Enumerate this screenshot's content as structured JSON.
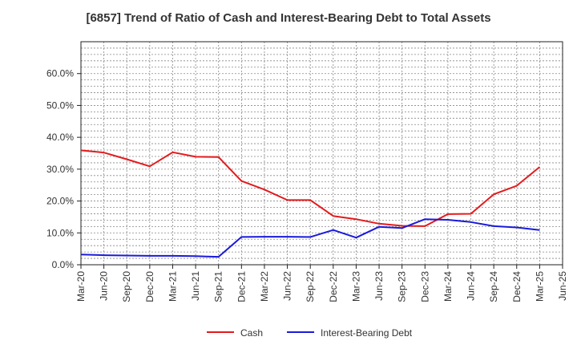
{
  "chart_data": {
    "type": "line",
    "title": "[6857]  Trend of Ratio of Cash and Interest-Bearing Debt to Total Assets",
    "xlabel": "",
    "ylabel": "",
    "x": [
      "Mar-20",
      "Jun-20",
      "Sep-20",
      "Dec-20",
      "Mar-21",
      "Jun-21",
      "Sep-21",
      "Dec-21",
      "Mar-22",
      "Jun-22",
      "Sep-22",
      "Dec-22",
      "Mar-23",
      "Jun-23",
      "Sep-23",
      "Dec-23",
      "Mar-24",
      "Jun-24",
      "Sep-24",
      "Dec-24",
      "Mar-25",
      "Jun-25"
    ],
    "ylim": [
      0,
      0.7
    ],
    "yticks": [
      0,
      0.1,
      0.2,
      0.3,
      0.4,
      0.5,
      0.6
    ],
    "ytick_labels": [
      "0.0%",
      "10.0%",
      "20.0%",
      "30.0%",
      "40.0%",
      "50.0%",
      "60.0%"
    ],
    "grid": true,
    "legend_position": "bottom",
    "series": [
      {
        "name": "Cash",
        "color": "#e41a1c",
        "values": [
          0.359,
          0.352,
          0.331,
          0.309,
          0.353,
          0.339,
          0.338,
          0.263,
          0.236,
          0.203,
          0.203,
          0.153,
          0.143,
          0.129,
          0.122,
          0.121,
          0.159,
          0.16,
          0.221,
          0.248,
          0.307,
          null
        ]
      },
      {
        "name": "Interest-Bearing Debt",
        "color": "#1a1adb",
        "values": [
          0.032,
          0.03,
          0.029,
          0.028,
          0.028,
          0.027,
          0.025,
          0.087,
          0.088,
          0.088,
          0.087,
          0.109,
          0.085,
          0.119,
          0.115,
          0.143,
          0.141,
          0.134,
          0.121,
          0.117,
          0.109,
          null
        ]
      }
    ]
  }
}
